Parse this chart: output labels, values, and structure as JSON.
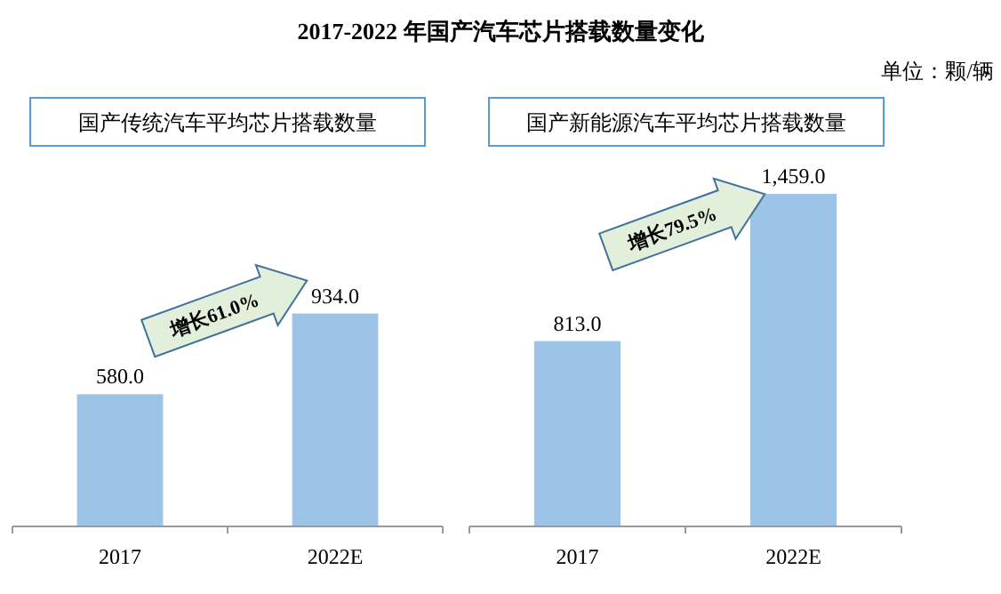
{
  "chart_data": [
    {
      "type": "bar",
      "title": "国产传统汽车平均芯片搭载数量",
      "categories": [
        "2017",
        "2022E"
      ],
      "values": [
        580.0,
        934.0
      ],
      "color": "#9dc3e6",
      "value_labels": [
        "580.0",
        "934.0"
      ],
      "annotations": [
        "2017-2022 年国产汽车芯片搭载数量变化",
        "单位：颗/辆",
        "增长61.0%"
      ]
    },
    {
      "type": "bar",
      "title": "国产新能源汽车平均芯片搭载数量",
      "categories": [
        "2017",
        "2022E"
      ],
      "values": [
        813.0,
        1459.0
      ],
      "color": "#9dc3e6",
      "value_labels": [
        "813.0",
        "1,459.0"
      ],
      "annotations": [
        "增长79.5%"
      ]
    }
  ]
}
